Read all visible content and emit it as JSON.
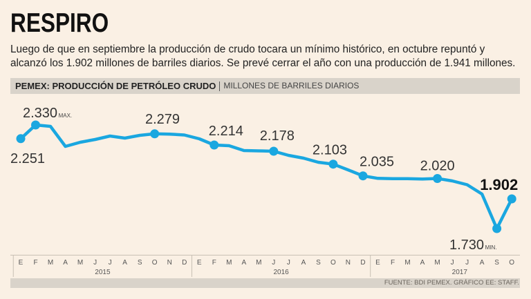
{
  "title": "RESPIRO",
  "subtitle_lines": [
    "Luego de que en septiembre la producción de crudo tocara un mínimo histórico, en octubre repuntó y",
    "alcanzó los 1.902 millones de barriles diarios. Se prevé cerrar el año con una producción de 1.941 millones."
  ],
  "source": "FUENTE: BDI PEMEX. GRÁFICO EE: STAFF.",
  "colors": {
    "background": "#faf0e4",
    "band": "#d9d3ca",
    "series": "#1aa7e0",
    "text": "#222222"
  },
  "chart_data": {
    "type": "line",
    "title": "PEMEX: PRODUCCIÓN DE PETRÓLEO CRUDO",
    "ylabel": "MILLONES DE BARRILES DIARIOS",
    "ylim": [
      1.6,
      2.5
    ],
    "grid": false,
    "x_axis": {
      "groups": [
        {
          "year": "2015",
          "months": [
            "E",
            "F",
            "M",
            "A",
            "M",
            "J",
            "J",
            "A",
            "S",
            "O",
            "N",
            "D"
          ]
        },
        {
          "year": "2016",
          "months": [
            "E",
            "F",
            "M",
            "A",
            "M",
            "J",
            "J",
            "A",
            "S",
            "O",
            "N",
            "D"
          ]
        },
        {
          "year": "2017",
          "months": [
            "E",
            "F",
            "M",
            "A",
            "M",
            "J",
            "J",
            "A",
            "S",
            "O"
          ]
        }
      ]
    },
    "series": [
      {
        "values": [
          2.251,
          2.33,
          2.322,
          2.206,
          2.23,
          2.246,
          2.266,
          2.254,
          2.27,
          2.279,
          2.277,
          2.272,
          2.25,
          2.214,
          2.21,
          2.182,
          2.18,
          2.178,
          2.154,
          2.138,
          2.114,
          2.103,
          2.07,
          2.035,
          2.021,
          2.019,
          2.019,
          2.017,
          2.02,
          2.006,
          1.984,
          1.93,
          1.73,
          1.902
        ]
      }
    ],
    "annotations": [
      {
        "index": 0,
        "label": "2.251"
      },
      {
        "index": 1,
        "label": "2.330",
        "note": "MAX."
      },
      {
        "index": 9,
        "label": "2.279"
      },
      {
        "index": 13,
        "label": "2.214"
      },
      {
        "index": 17,
        "label": "2.178"
      },
      {
        "index": 21,
        "label": "2.103"
      },
      {
        "index": 23,
        "label": "2.035"
      },
      {
        "index": 28,
        "label": "2.020"
      },
      {
        "index": 32,
        "label": "1.730",
        "note": "MIN."
      },
      {
        "index": 33,
        "label": "1.902",
        "bold": true
      }
    ]
  }
}
